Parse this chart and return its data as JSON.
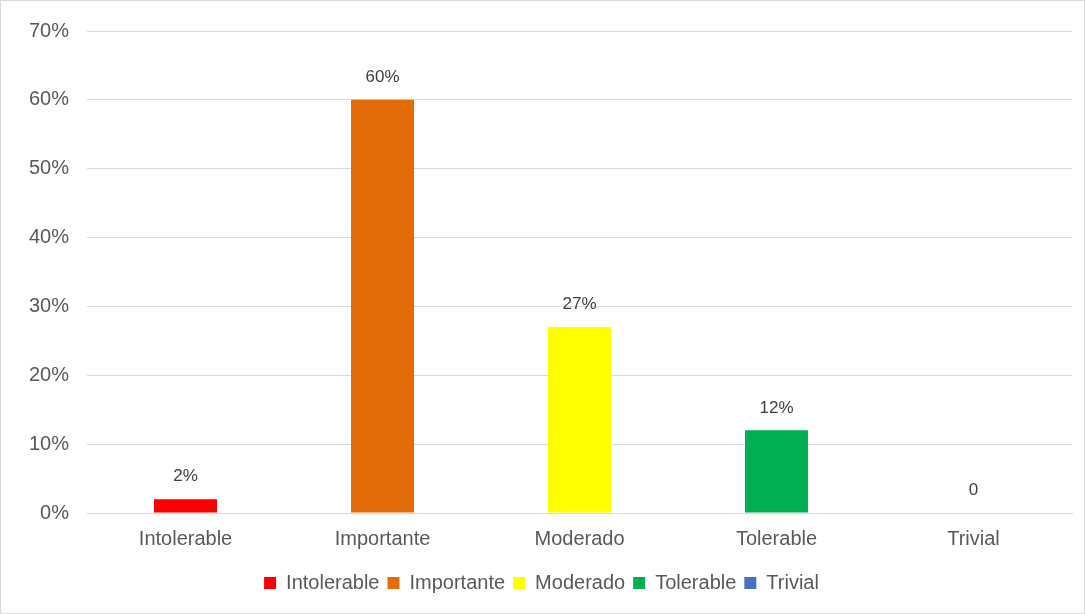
{
  "chart_data": {
    "type": "bar",
    "categories": [
      "Intolerable",
      "Importante",
      "Moderado",
      "Tolerable",
      "Trivial"
    ],
    "series": [
      {
        "name": "Intolerable",
        "color": "#ff0000",
        "values": [
          2,
          null,
          null,
          null,
          null
        ],
        "value_labels": [
          "2%",
          null,
          null,
          null,
          null
        ]
      },
      {
        "name": "Importante",
        "color": "#e36c09",
        "values": [
          null,
          60,
          null,
          null,
          null
        ],
        "value_labels": [
          null,
          "60%",
          null,
          null,
          null
        ]
      },
      {
        "name": "Moderado",
        "color": "#ffff00",
        "values": [
          null,
          null,
          27,
          null,
          null
        ],
        "value_labels": [
          null,
          null,
          "27%",
          null,
          null
        ]
      },
      {
        "name": "Tolerable",
        "color": "#00b050",
        "values": [
          null,
          null,
          null,
          12,
          null
        ],
        "value_labels": [
          null,
          null,
          null,
          "12%",
          null
        ]
      },
      {
        "name": "Trivial",
        "color": "#4472c4",
        "values": [
          null,
          null,
          null,
          null,
          0
        ],
        "value_labels": [
          null,
          null,
          null,
          null,
          "0"
        ]
      }
    ],
    "stacked": true,
    "ylim": [
      0,
      70
    ],
    "yticks": [
      {
        "value": 0,
        "label": "0%"
      },
      {
        "value": 10,
        "label": "10%"
      },
      {
        "value": 20,
        "label": "20%"
      },
      {
        "value": 30,
        "label": "30%"
      },
      {
        "value": 40,
        "label": "40%"
      },
      {
        "value": 50,
        "label": "50%"
      },
      {
        "value": 60,
        "label": "60%"
      },
      {
        "value": 70,
        "label": "70%"
      }
    ],
    "grid": "y",
    "legend": "bottom"
  }
}
